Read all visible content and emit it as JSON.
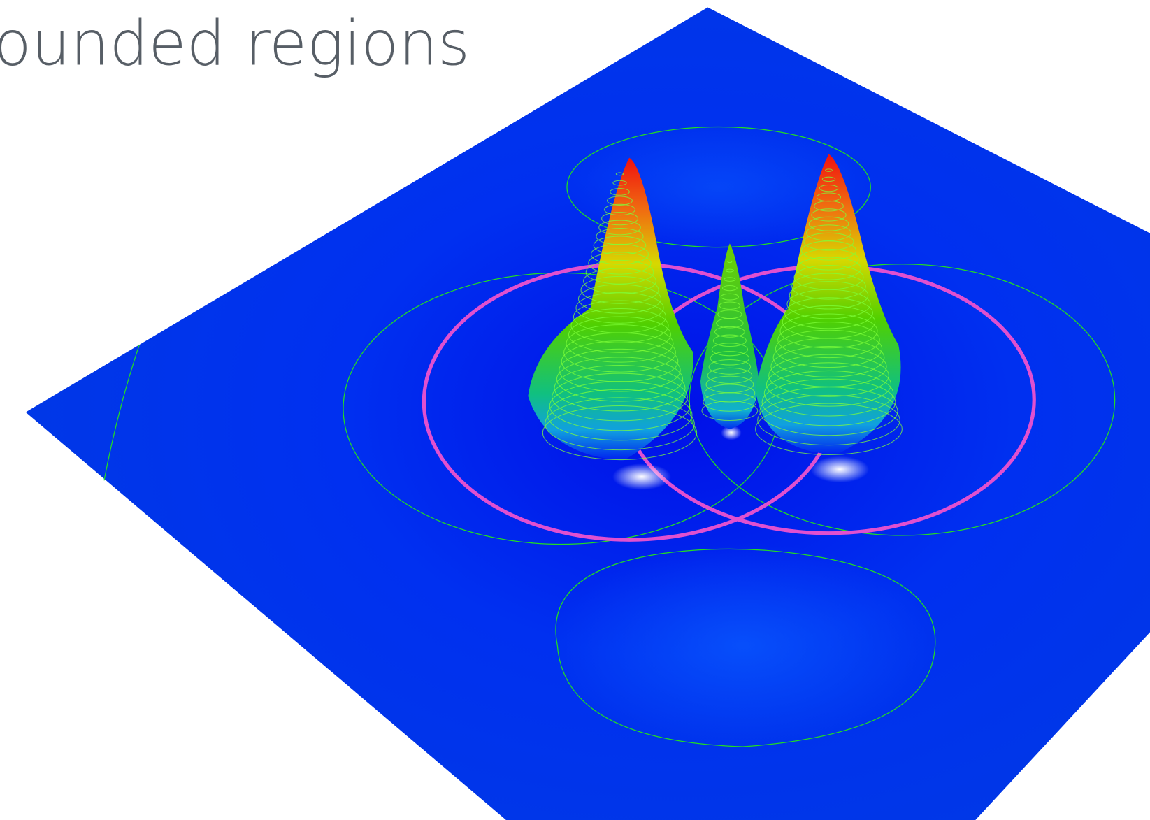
{
  "title": "bounded regions"
}
